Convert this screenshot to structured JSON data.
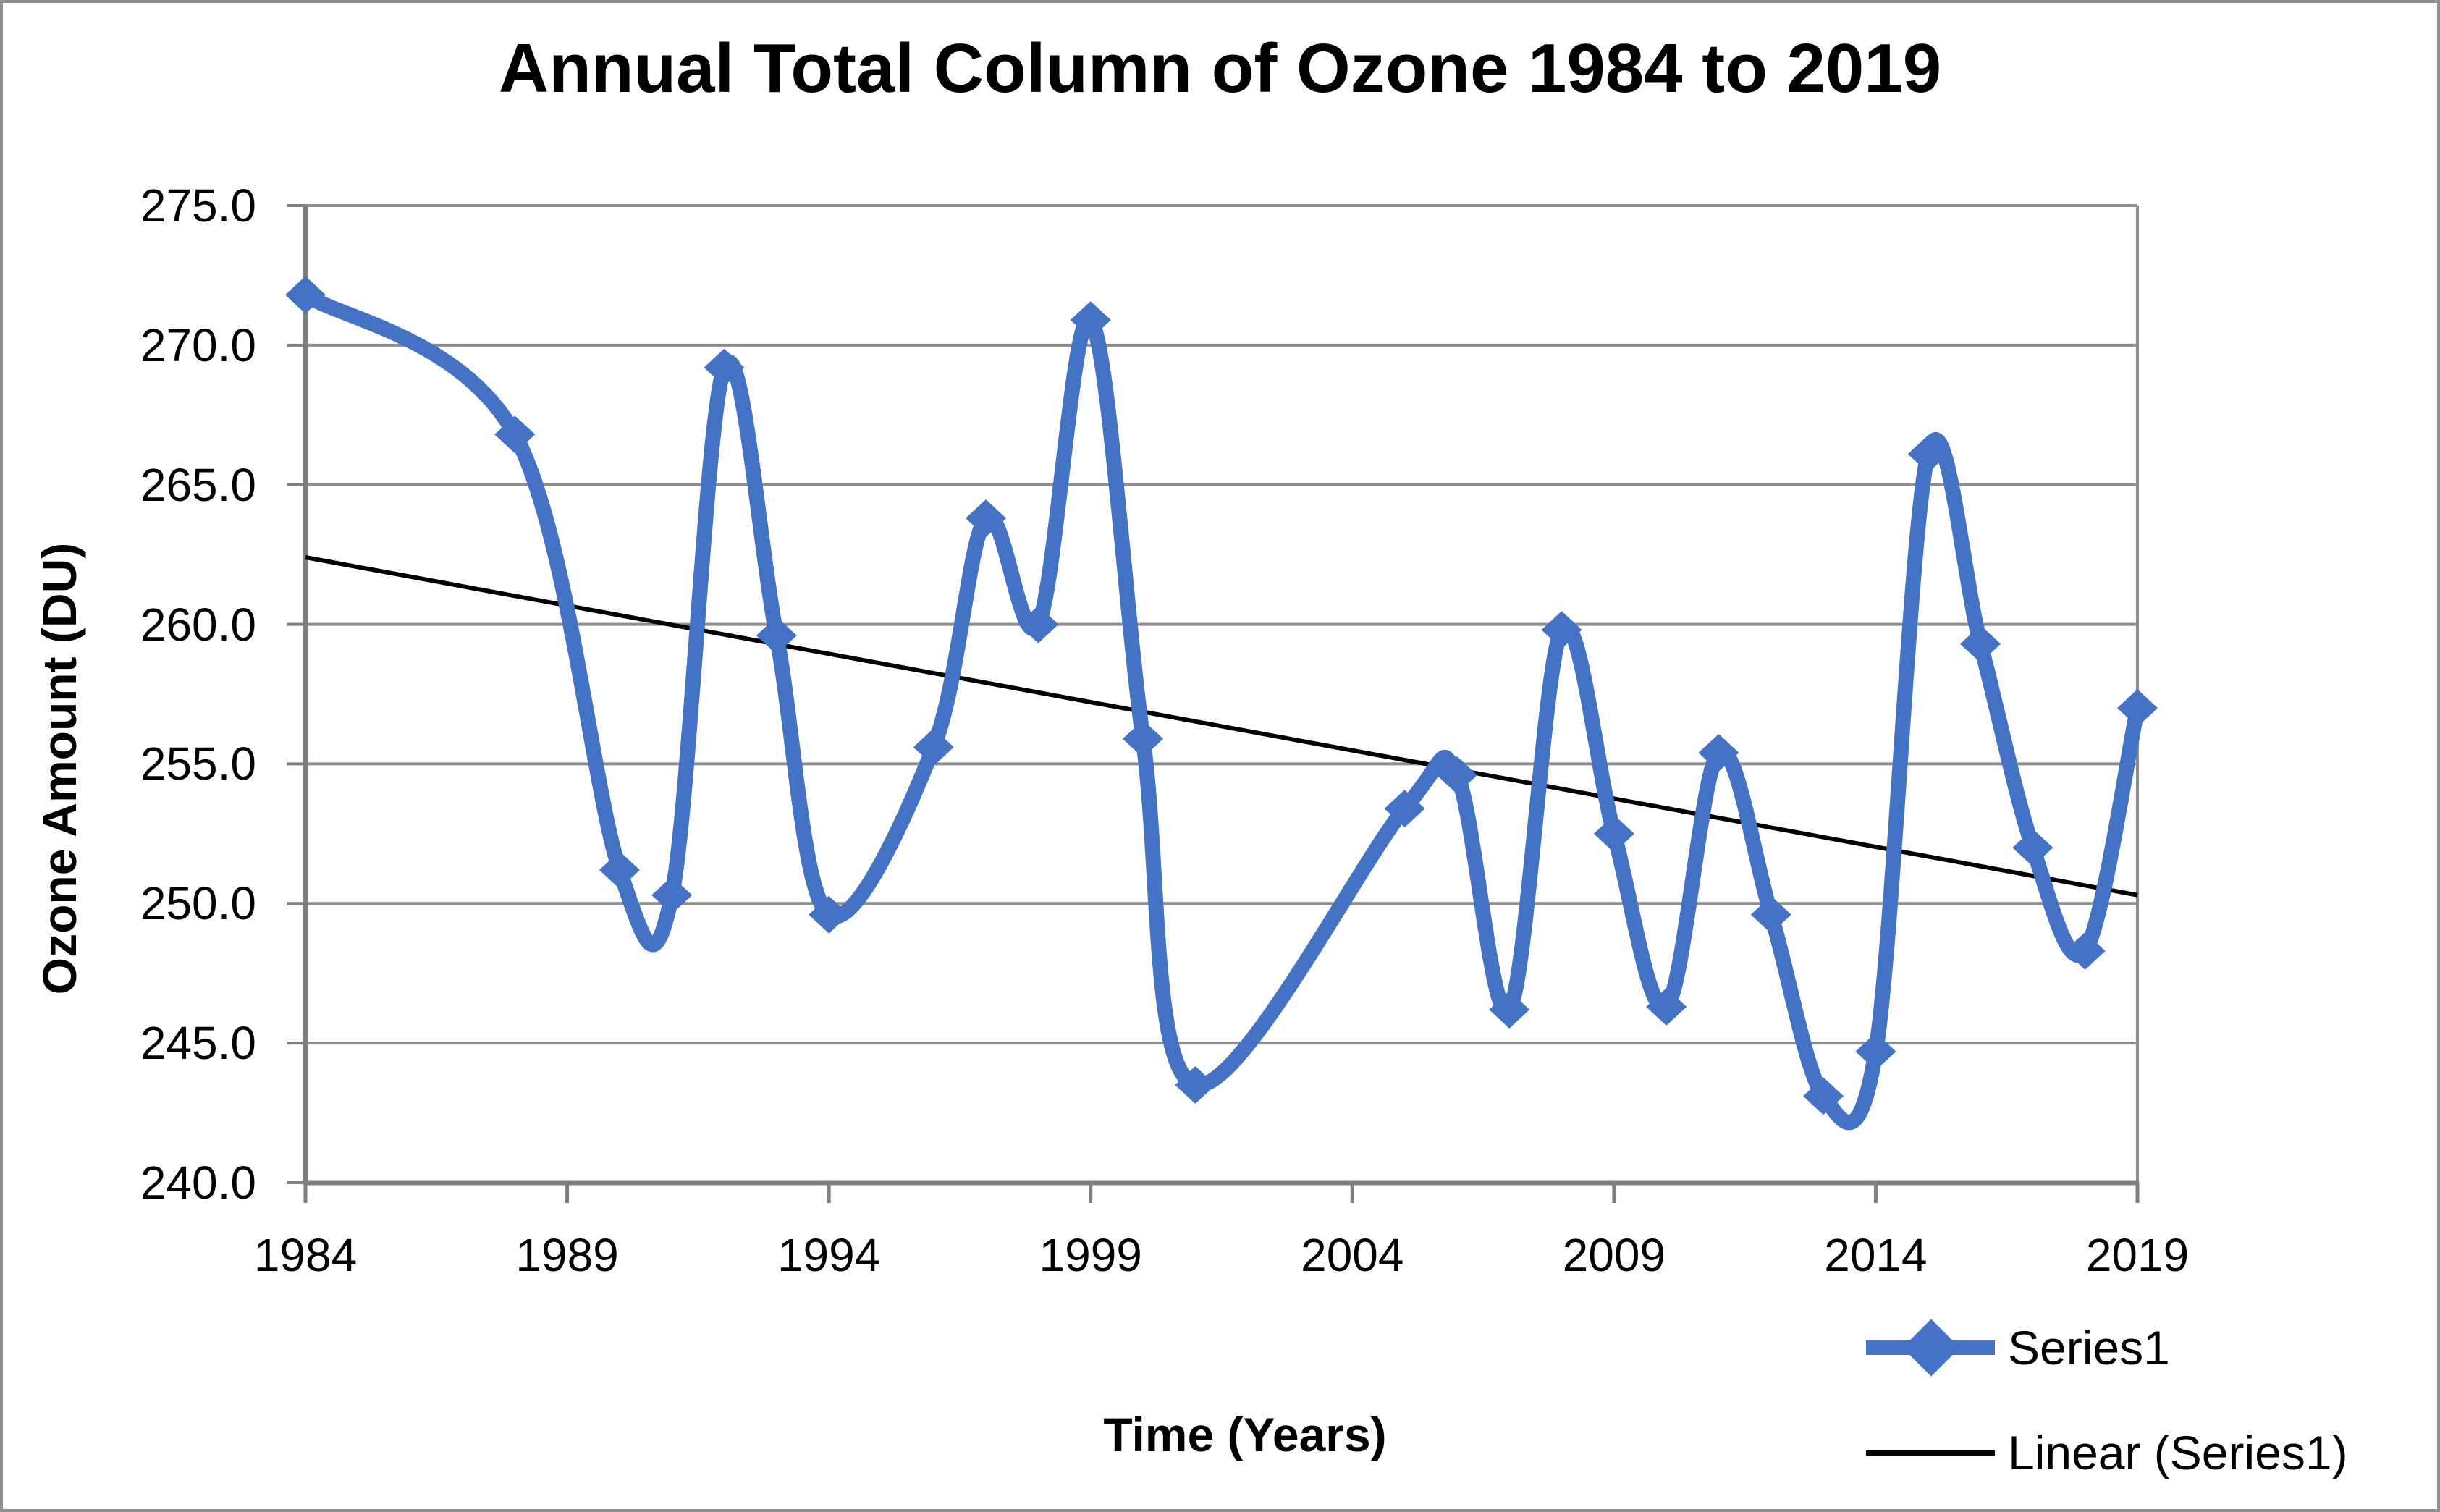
{
  "title": "Annual Total Column of Ozone 1984 to 2019",
  "chart_data": {
    "type": "line",
    "title": "Annual Total Column of Ozone 1984 to 2019",
    "xlabel": "Time (Years)",
    "ylabel": "Ozone Amount (DU)",
    "xlim": [
      1984,
      2019
    ],
    "ylim": [
      240.0,
      275.0
    ],
    "x_ticks": [
      1984,
      1989,
      1994,
      1999,
      2004,
      2009,
      2014,
      2019
    ],
    "y_ticks": [
      240.0,
      245.0,
      250.0,
      255.0,
      260.0,
      265.0,
      270.0,
      275.0
    ],
    "y_tick_format_decimals": 1,
    "grid": true,
    "legend_position": "bottom-right",
    "series": [
      {
        "name": "Series1",
        "color": "#4472C4",
        "marker": "diamond",
        "smooth": true,
        "x": [
          1984,
          1988,
          1990,
          1991,
          1992,
          1993,
          1994,
          1996,
          1997,
          1998,
          1999,
          2000,
          2001,
          2005,
          2006,
          2007,
          2008,
          2009,
          2010,
          2011,
          2012,
          2013,
          2014,
          2015,
          2016,
          2017,
          2018,
          2019
        ],
        "y": [
          271.8,
          266.8,
          251.2,
          250.3,
          269.2,
          259.6,
          249.6,
          255.6,
          263.8,
          260.0,
          270.9,
          255.9,
          243.5,
          253.4,
          254.6,
          246.2,
          259.8,
          252.5,
          246.3,
          255.4,
          249.6,
          243.1,
          244.7,
          266.1,
          259.3,
          252.0,
          248.3,
          257.0
        ]
      },
      {
        "name": "Linear (Series1)",
        "color": "#000000",
        "type": "trendline",
        "x": [
          1984,
          2019
        ],
        "y": [
          262.4,
          250.3
        ]
      }
    ]
  },
  "legend": {
    "series1_label": "Series1",
    "trendline_label": "Linear (Series1)"
  },
  "colors": {
    "series_blue": "#4472C4",
    "trendline_black": "#000000",
    "gridline_gray": "#8e8e8e",
    "axis_gray": "#7f7f7f",
    "text_black": "#000000",
    "background": "#ffffff",
    "outer_border_gray": "#8f8f8f"
  }
}
